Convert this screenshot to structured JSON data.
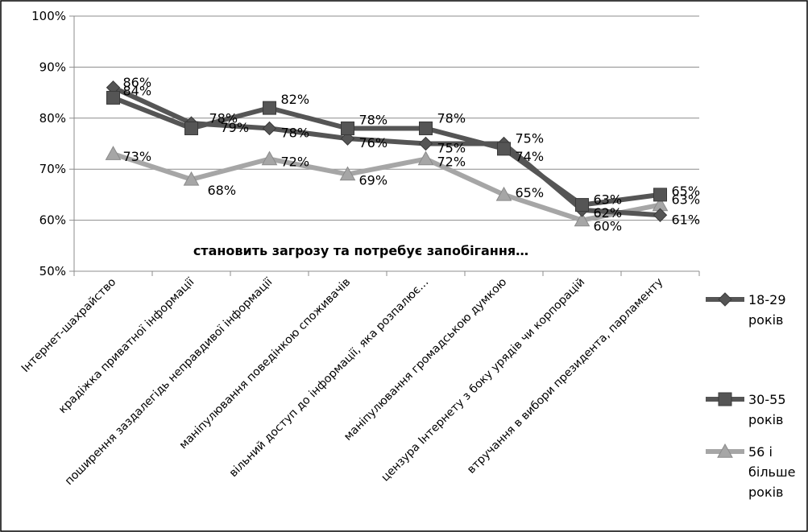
{
  "chart_data": {
    "type": "line",
    "categories": [
      "Інтернет-шахрайство",
      "крадіжка приватної інформації",
      "поширення заздалегідь неправдивої інформації",
      "маніпулювання поведінкою споживачів",
      "вільний доступ до інформації, яка розпалює…",
      "маніпулювання громадською думкою",
      "цензура Інтернету з боку урядів чи корпорацій",
      "втручання в вибори президента, парламенту"
    ],
    "series": [
      {
        "name": "18-29 років",
        "values": [
          86,
          79,
          78,
          76,
          75,
          75,
          62,
          61
        ],
        "color": "#555555",
        "marker": "diamond"
      },
      {
        "name": "30-55 років",
        "values": [
          84,
          78,
          82,
          78,
          78,
          74,
          63,
          65
        ],
        "color": "#555555",
        "marker": "square"
      },
      {
        "name": "56 і більше років",
        "values": [
          73,
          68,
          72,
          69,
          72,
          65,
          60,
          63
        ],
        "color": "#a6a6a6",
        "marker": "triangle"
      }
    ],
    "y_ticks": [
      "50%",
      "60%",
      "70%",
      "80%",
      "90%",
      "100%"
    ],
    "ylim": [
      50,
      100
    ],
    "annotation": "становить загрозу та потребує запобігання…",
    "grid": true,
    "legend_position": "right"
  }
}
